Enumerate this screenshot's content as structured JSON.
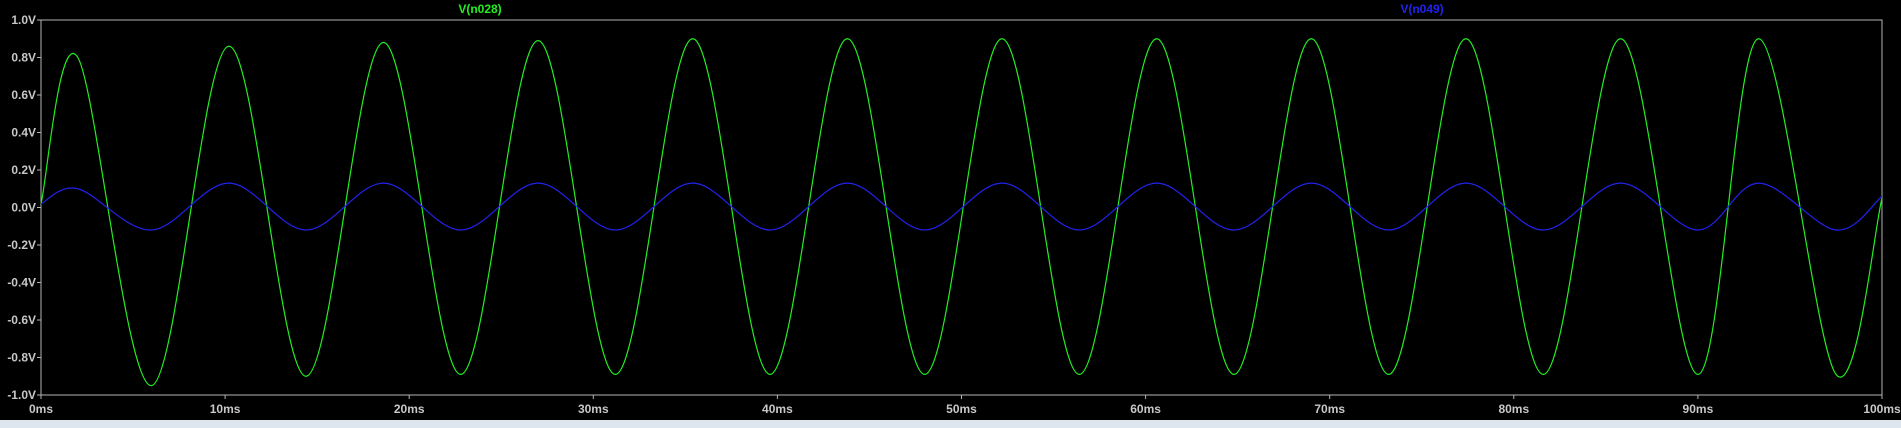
{
  "chart_data": {
    "type": "line",
    "x_unit": "ms",
    "y_unit": "V",
    "xlim": [
      0,
      100
    ],
    "ylim": [
      -1.0,
      1.0
    ],
    "x_ticks": [
      0,
      10,
      20,
      30,
      40,
      50,
      60,
      70,
      80,
      90,
      100
    ],
    "x_tick_labels": [
      "0ms",
      "10ms",
      "20ms",
      "30ms",
      "40ms",
      "50ms",
      "60ms",
      "70ms",
      "80ms",
      "90ms",
      "100ms"
    ],
    "y_ticks": [
      1.0,
      0.8,
      0.6,
      0.4,
      0.2,
      0.0,
      -0.2,
      -0.4,
      -0.6,
      -0.8,
      -1.0
    ],
    "y_tick_labels": [
      "1.0V",
      "0.8V",
      "0.6V",
      "0.4V",
      "0.2V",
      "0.0V",
      "-0.2V",
      "-0.4V",
      "-0.6V",
      "-0.8V",
      "-1.0V"
    ],
    "grid": false,
    "legend_placement": "top",
    "series": [
      {
        "name": "V(n028)",
        "color": "#22ee22",
        "x": [
          0,
          2.0,
          6.0,
          10.2,
          14.4,
          18.6,
          22.8,
          27.0,
          31.2,
          35.4,
          39.6,
          43.8,
          48.0,
          52.2,
          56.4,
          60.6,
          64.8,
          69.0,
          73.2,
          77.4,
          81.6,
          85.8,
          90.0,
          93.3,
          97.5,
          100
        ],
        "y": [
          0.02,
          0.8,
          -0.95,
          0.86,
          -0.9,
          0.88,
          -0.89,
          0.89,
          -0.89,
          0.9,
          -0.89,
          0.9,
          -0.89,
          0.9,
          -0.89,
          0.9,
          -0.89,
          0.9,
          -0.89,
          0.9,
          -0.89,
          0.9,
          -0.89,
          0.9,
          -0.89,
          0.05
        ]
      },
      {
        "name": "V(n049)",
        "color": "#2222ee",
        "x": [
          0,
          2.0,
          6.0,
          10.2,
          14.4,
          18.6,
          22.8,
          27.0,
          31.2,
          35.4,
          39.6,
          43.8,
          48.0,
          52.2,
          56.4,
          60.6,
          64.8,
          69.0,
          73.2,
          77.4,
          81.6,
          85.8,
          90.0,
          93.3,
          97.5,
          100
        ],
        "y": [
          0.02,
          0.1,
          -0.12,
          0.13,
          -0.12,
          0.13,
          -0.12,
          0.13,
          -0.12,
          0.13,
          -0.12,
          0.13,
          -0.12,
          0.13,
          -0.12,
          0.13,
          -0.12,
          0.13,
          -0.12,
          0.13,
          -0.12,
          0.13,
          -0.12,
          0.13,
          -0.12,
          0.06
        ]
      }
    ]
  }
}
